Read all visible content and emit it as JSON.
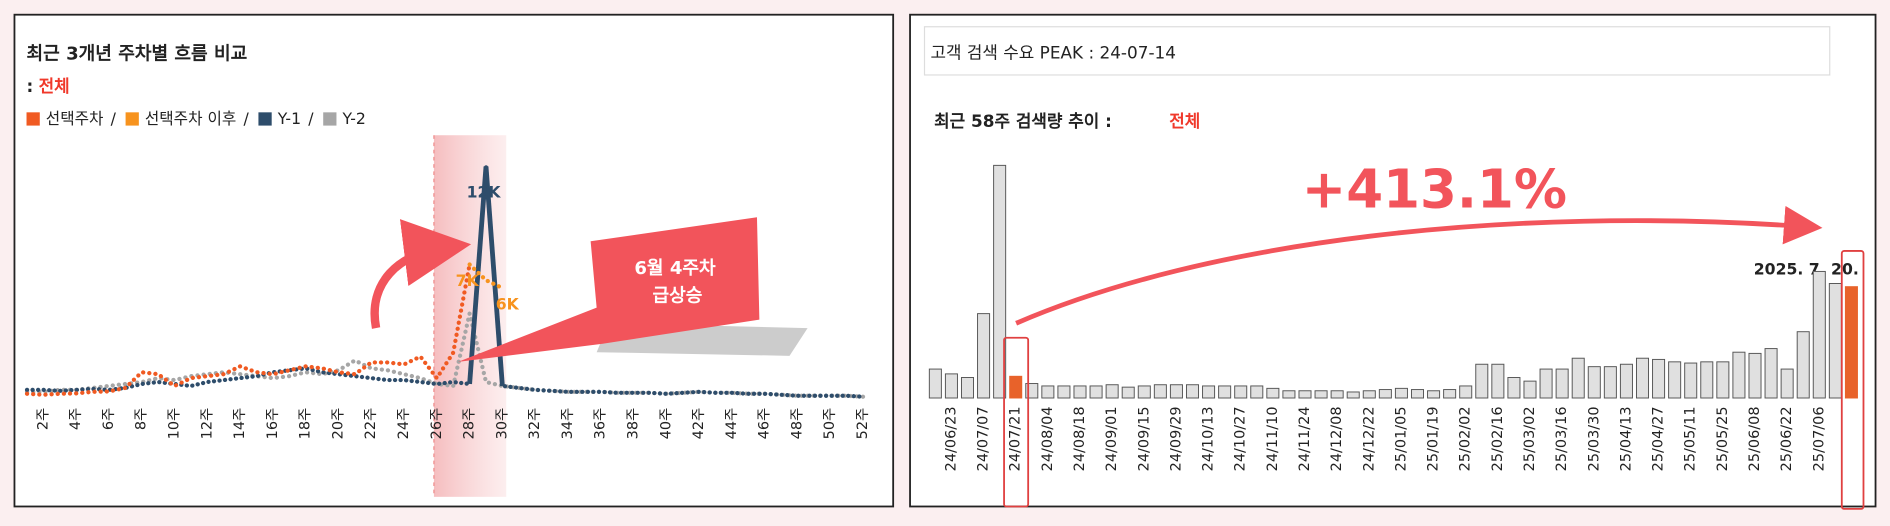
{
  "chart_data": [
    {
      "type": "line",
      "title": "최근 3개년 주차별 흐름 비교",
      "subtitle_prefix": ":",
      "subtitle": "전체",
      "legend_separator": "/",
      "categories": [
        null,
        "2주",
        null,
        "4주",
        null,
        "6주",
        null,
        "8주",
        null,
        "10주",
        null,
        "12주",
        null,
        "14주",
        null,
        "16주",
        null,
        "18주",
        null,
        "20주",
        null,
        "22주",
        null,
        "24주",
        null,
        "26주",
        null,
        "28주",
        null,
        "30주",
        null,
        "32주",
        null,
        "34주",
        null,
        "36주",
        null,
        "38주",
        null,
        "40주",
        null,
        "42주",
        null,
        "44주",
        null,
        "46주",
        null,
        "48주",
        null,
        "50주",
        null,
        "52주"
      ],
      "ylim": [
        0,
        12000
      ],
      "annotations": [
        "6월 4주차",
        "급상승"
      ],
      "series": [
        {
          "name": "선택주차",
          "color": "#f05a22",
          "values": [
            400,
            350,
            400,
            420,
            500,
            520,
            700,
            1500,
            1400,
            800,
            1200,
            1300,
            1400,
            1800,
            1500,
            1400,
            1600,
            1800,
            1700,
            1500,
            1400,
            2000,
            2000,
            1900,
            2300,
            1200,
            2500,
            7000,
            null,
            null,
            null,
            null,
            null,
            null,
            null,
            null,
            null,
            null,
            null,
            null,
            null,
            null,
            null,
            null,
            null,
            null,
            null,
            null,
            null,
            null,
            null,
            null
          ]
        },
        {
          "name": "선택주차 이후",
          "color": "#f7931e",
          "values": [
            null,
            null,
            null,
            null,
            null,
            null,
            null,
            null,
            null,
            null,
            null,
            null,
            null,
            null,
            null,
            null,
            null,
            null,
            null,
            null,
            null,
            null,
            null,
            null,
            null,
            null,
            null,
            7000,
            6200,
            5800,
            null,
            null,
            null,
            null,
            null,
            null,
            null,
            null,
            null,
            null,
            null,
            null,
            null,
            null,
            null,
            null,
            null,
            null,
            null,
            null,
            null,
            null
          ],
          "value_labels": [
            null,
            null,
            null,
            null,
            null,
            null,
            null,
            null,
            null,
            null,
            null,
            null,
            null,
            null,
            null,
            null,
            null,
            null,
            null,
            null,
            null,
            null,
            null,
            null,
            null,
            null,
            null,
            "7K",
            null,
            "6K",
            null,
            null,
            null,
            null,
            null,
            null,
            null,
            null,
            null,
            null,
            null,
            null,
            null,
            null,
            null,
            null,
            null,
            null,
            null,
            null,
            null,
            null
          ]
        },
        {
          "name": "Y-1",
          "color": "#2e4d6b",
          "values": [
            600,
            600,
            550,
            600,
            650,
            600,
            700,
            900,
            1000,
            900,
            800,
            1000,
            1100,
            1200,
            1300,
            1500,
            1600,
            1700,
            1500,
            1400,
            1300,
            1200,
            1100,
            1100,
            1000,
            900,
            1000,
            900,
            12000,
            800,
            700,
            600,
            550,
            500,
            500,
            500,
            450,
            450,
            450,
            400,
            450,
            500,
            450,
            450,
            400,
            400,
            350,
            300,
            300,
            300,
            300,
            250
          ],
          "value_labels": [
            null,
            null,
            null,
            null,
            null,
            null,
            null,
            null,
            null,
            null,
            null,
            null,
            null,
            null,
            null,
            null,
            null,
            null,
            null,
            null,
            null,
            null,
            null,
            null,
            null,
            null,
            null,
            null,
            "12K",
            null,
            null,
            null,
            null,
            null,
            null,
            null,
            null,
            null,
            null,
            null,
            null,
            null,
            null,
            null,
            null,
            null,
            null,
            null,
            null,
            null,
            null,
            null
          ]
        },
        {
          "name": "Y-2",
          "color": "#a6a6a6",
          "values": [
            500,
            500,
            600,
            600,
            700,
            800,
            900,
            1000,
            1200,
            1100,
            1300,
            1400,
            1500,
            1400,
            1300,
            1200,
            1300,
            1500,
            1400,
            1600,
            2100,
            1700,
            1600,
            1400,
            1200,
            900,
            800,
            4500,
            1000,
            800,
            700,
            600,
            550,
            500,
            500,
            500,
            450,
            450,
            450,
            400,
            450,
            500,
            450,
            450,
            400,
            400,
            350,
            300,
            300,
            300,
            300,
            250
          ]
        }
      ]
    },
    {
      "type": "bar",
      "header": "고객 검색 수요 PEAK : 24-07-14",
      "title": "최근 58주 검색량 추이 :",
      "subtitle": "전체",
      "annotations": [
        "+413.1%",
        "2025. 7. 20."
      ],
      "categories": [
        null,
        "24/06/23",
        null,
        "24/07/07",
        null,
        "24/07/21",
        null,
        "24/08/04",
        null,
        "24/08/18",
        null,
        "24/09/01",
        null,
        "24/09/15",
        null,
        "24/09/29",
        null,
        "24/10/13",
        null,
        "24/10/27",
        null,
        "24/11/10",
        null,
        "24/11/24",
        null,
        "24/12/08",
        null,
        "24/12/22",
        null,
        "25/01/05",
        null,
        "25/01/19",
        null,
        "25/02/02",
        null,
        "25/02/16",
        null,
        "25/03/02",
        null,
        "25/03/16",
        null,
        "25/03/30",
        null,
        "25/04/13",
        null,
        "25/04/27",
        null,
        "25/05/11",
        null,
        "25/05/25",
        null,
        "25/06/08",
        null,
        "25/06/22",
        null,
        "25/07/06",
        null,
        null
      ],
      "values": [
        24,
        20,
        17,
        70,
        193,
        18,
        12,
        10,
        10,
        10,
        10,
        11,
        9,
        10,
        11,
        11,
        11,
        10,
        10,
        10,
        10,
        8,
        6,
        6,
        6,
        6,
        5,
        6,
        7,
        8,
        7,
        6,
        7,
        10,
        28,
        28,
        17,
        14,
        24,
        24,
        33,
        26,
        26,
        28,
        33,
        32,
        30,
        29,
        30,
        30,
        38,
        37,
        41,
        24,
        55,
        105,
        95,
        92.36
      ],
      "color": "#e0e0e0",
      "highlight_color": "#e8622a",
      "highlight": [
        5,
        57
      ],
      "ylim": [
        0,
        200
      ]
    }
  ]
}
